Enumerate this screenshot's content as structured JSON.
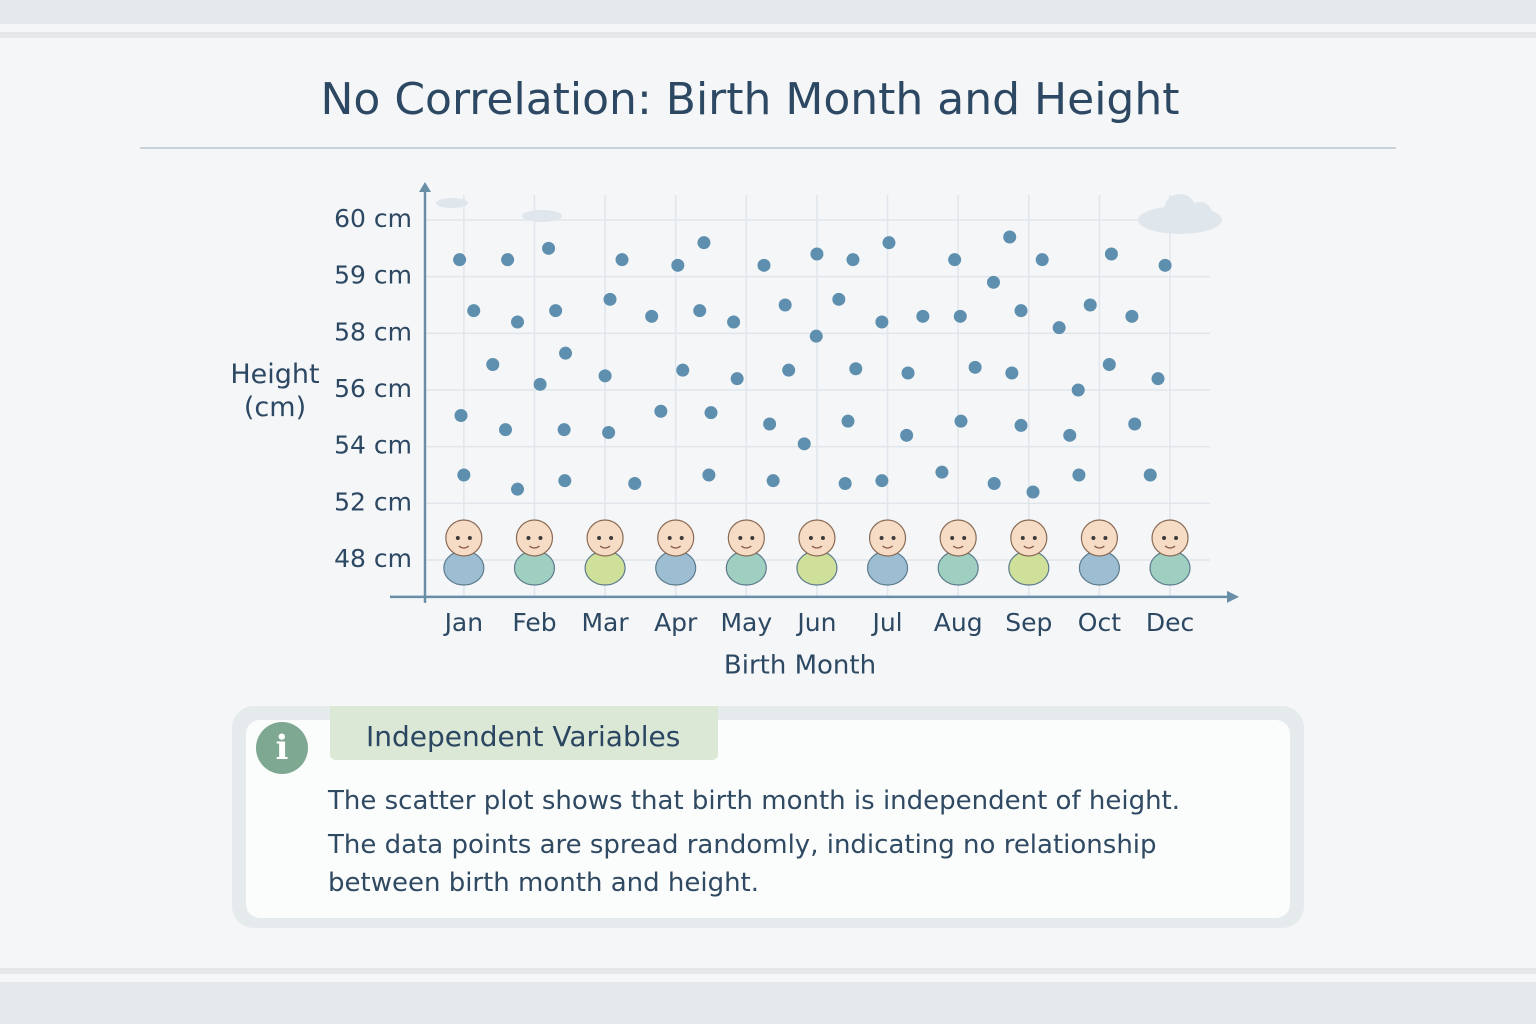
{
  "chart_data": {
    "type": "scatter",
    "title": "No Correlation: Birth Month and Height",
    "y_label": "Height (cm)",
    "x_label": "Birth Month",
    "xlim": [
      -0.55,
      10.92
    ],
    "xticks": [
      {
        "value": 0,
        "label": "Jan"
      },
      {
        "value": 1,
        "label": "Feb"
      },
      {
        "value": 2,
        "label": "Mar"
      },
      {
        "value": 3,
        "label": "Apr"
      },
      {
        "value": 4,
        "label": "May"
      },
      {
        "value": 5,
        "label": "Jun"
      },
      {
        "value": 6,
        "label": "Jul"
      },
      {
        "value": 7,
        "label": "Aug"
      },
      {
        "value": 8,
        "label": "Sep"
      },
      {
        "value": 9,
        "label": "Oct"
      },
      {
        "value": 10,
        "label": "Dec"
      }
    ],
    "ylim": [
      45.4,
      60.5
    ],
    "yticks": [
      {
        "value": 60,
        "label": "60 cm"
      },
      {
        "value": 59,
        "label": "59 cm"
      },
      {
        "value": 58,
        "label": "58 cm"
      },
      {
        "value": 56,
        "label": "56 cm"
      },
      {
        "value": 54,
        "label": "54 cm"
      },
      {
        "value": 52,
        "label": "52 cm"
      },
      {
        "value": 48,
        "label": "48 cm"
      }
    ],
    "grid": true,
    "color": "#5f8fae",
    "x": [
      -0.06,
      0.14,
      0.41,
      -0.04,
      0,
      0.62,
      0.76,
      0.59,
      0.76,
      1.2,
      1.3,
      1.08,
      1.44,
      1.42,
      1.43,
      2.24,
      2.07,
      2.0,
      2.05,
      2.42,
      2.66,
      3.03,
      3.4,
      2.79,
      3.1,
      3.34,
      3.5,
      3.47,
      3.82,
      3.87,
      4.25,
      4.33,
      4.38,
      4.55,
      4.6,
      4.99,
      5.0,
      4.82,
      5.31,
      5.51,
      5.55,
      5.44,
      5.4,
      5.92,
      6.02,
      6.29,
      6.27,
      5.92,
      6.5,
      6.95,
      7.03,
      7.24,
      7.04,
      6.77,
      7.5,
      7.73,
      7.89,
      7.76,
      7.89,
      7.51,
      8.06,
      8.19,
      8.43,
      8.7,
      8.58,
      8.71,
      8.87,
      9.17,
      9.14,
      9.46,
      9.5,
      9.72,
      9.93,
      9.83
    ],
    "values": [
      59.3,
      58.4,
      56.9,
      55.1,
      53.0,
      59.3,
      58.2,
      54.6,
      52.5,
      59.5,
      58.4,
      56.2,
      57.3,
      54.6,
      52.8,
      59.3,
      58.6,
      56.5,
      54.5,
      52.7,
      58.3,
      59.2,
      59.6,
      55.25,
      56.7,
      58.4,
      55.2,
      53.0,
      58.2,
      56.4,
      59.2,
      54.8,
      52.8,
      58.5,
      56.7,
      57.9,
      59.4,
      54.1,
      58.6,
      59.3,
      56.75,
      54.9,
      52.7,
      58.2,
      59.6,
      56.6,
      54.4,
      52.8,
      58.3,
      59.3,
      58.3,
      56.8,
      54.9,
      53.1,
      58.9,
      59.7,
      58.4,
      56.6,
      54.75,
      52.7,
      52.4,
      59.3,
      58.1,
      56.0,
      54.4,
      53.0,
      58.5,
      59.4,
      56.9,
      58.3,
      54.8,
      53.0,
      59.2,
      56.4
    ]
  },
  "info_box": {
    "heading": "Independent Variables",
    "paragraphs": [
      "The scatter plot shows that birth month is independent of height.",
      "The data points are spread randomly, indicating no relationship between birth month and height."
    ]
  }
}
